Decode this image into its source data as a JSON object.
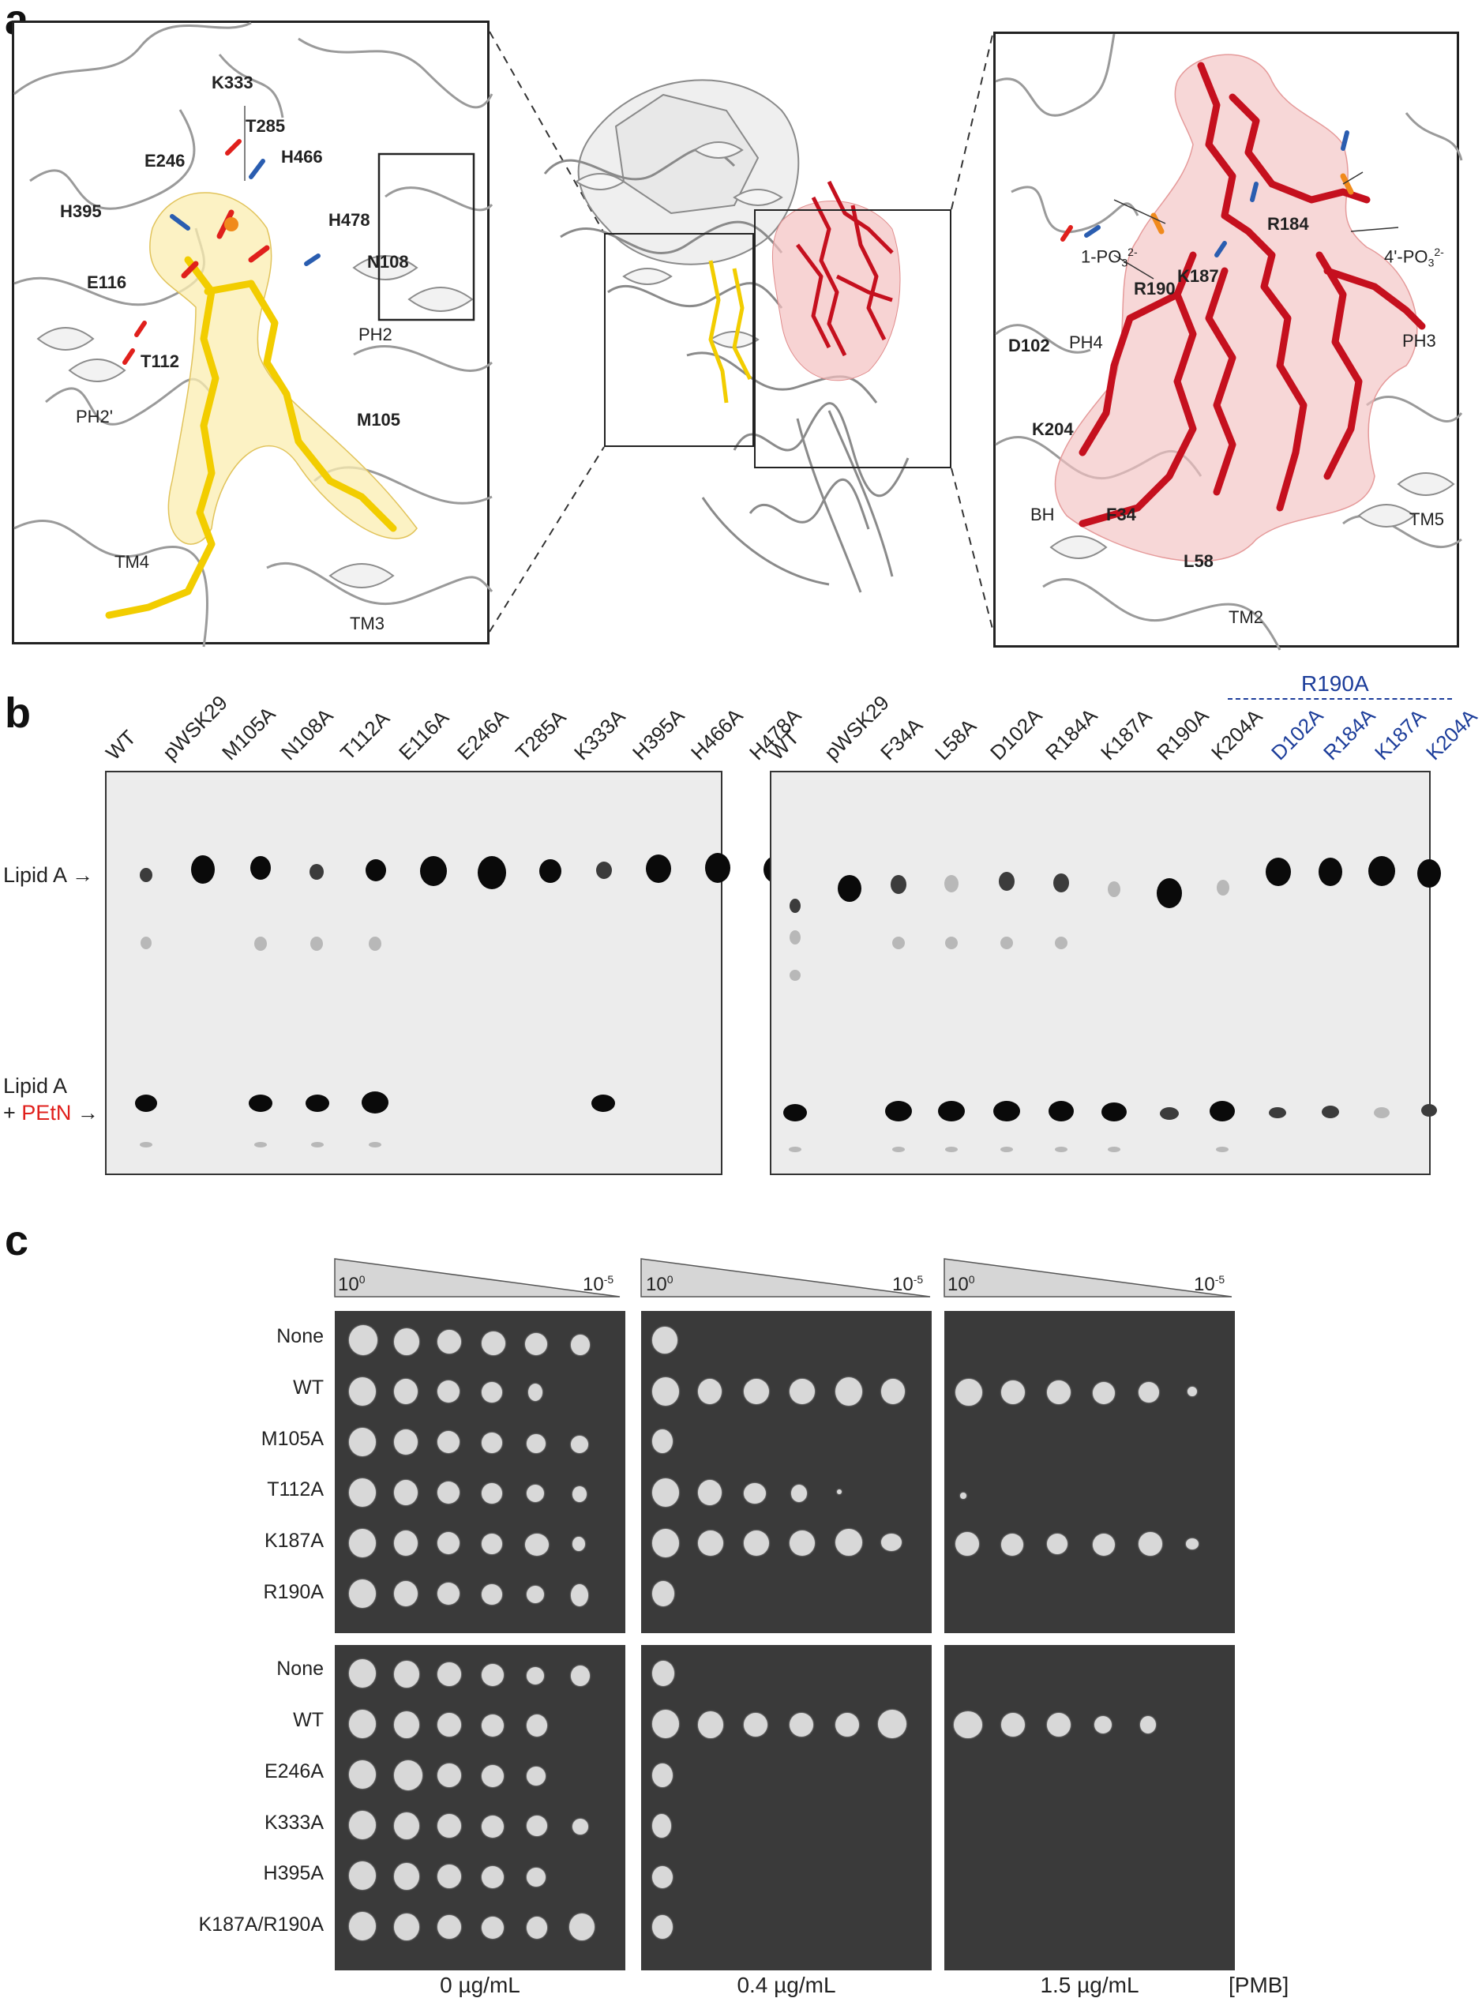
{
  "panel_a": {
    "letter": "a",
    "left_inset_labels": [
      "K333",
      "T285",
      "E246",
      "H466",
      "H395",
      "H478",
      "N108",
      "E116",
      "T112",
      "PH2",
      "M105",
      "PH2'",
      "TM4",
      "TM3"
    ],
    "right_inset_labels": [
      "R184",
      "1-PO",
      "K187",
      "R190",
      "D102",
      "PH4",
      "PH3",
      "K204",
      "BH",
      "F34",
      "TM5",
      "L58",
      "TM2"
    ],
    "right_phosphate_4": "4'-PO"
  },
  "panel_b": {
    "letter": "b",
    "left_lanes": [
      "WT",
      "pWSK29",
      "M105A",
      "N108A",
      "T112A",
      "E116A",
      "E246A",
      "T285A",
      "K333A",
      "H395A",
      "H466A",
      "H478A"
    ],
    "right_lanes_black": [
      "WT",
      "pWSK29",
      "F34A",
      "L58A",
      "D102A",
      "R184A",
      "K187A",
      "R190A",
      "K204A"
    ],
    "right_lanes_blue": [
      "D102A",
      "R184A",
      "K187A",
      "K204A"
    ],
    "blue_header": "R190A",
    "band_label_top": "Lipid A",
    "band_label_bottom_1": "Lipid A",
    "band_label_bottom_plus": "+",
    "band_label_bottom_pethn": "PEtN",
    "colors": {
      "blue": "#1c3d9a",
      "red": "#e0201c"
    }
  },
  "panel_c": {
    "letter": "c",
    "dilution_start": "10",
    "dilution_start_exp": "0",
    "dilution_end": "10",
    "dilution_end_exp": "-5",
    "top_strains": [
      "None",
      "WT",
      "M105A",
      "T112A",
      "K187A",
      "R190A"
    ],
    "bottom_strains": [
      "None",
      "WT",
      "E246A",
      "K333A",
      "H395A",
      "K187A/R190A"
    ],
    "concentrations": [
      "0 µg/mL",
      "0.4 µg/mL",
      "1.5 µg/mL"
    ],
    "pmb_label": "[PMB]"
  }
}
